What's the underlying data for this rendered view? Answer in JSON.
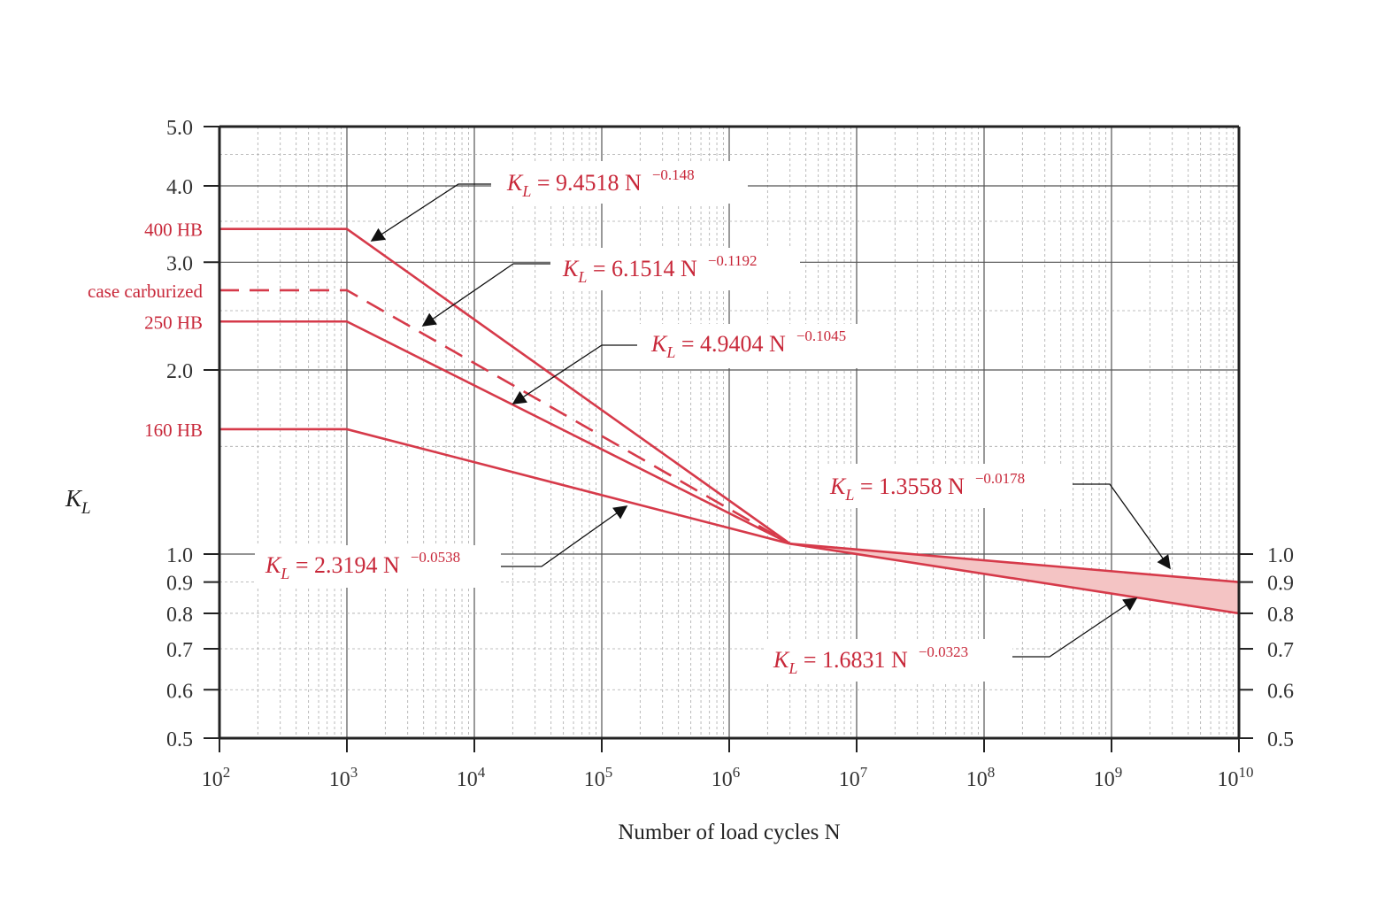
{
  "chart_data": {
    "type": "line",
    "xlabel": "Number of load cycles N",
    "ylabel": "K",
    "ylabel_sub": "L",
    "x_scale": "log",
    "y_scale": "log",
    "xlim": [
      100,
      10000000000
    ],
    "ylim": [
      0.5,
      5.0
    ],
    "grid": true,
    "x_ticks": [
      {
        "value": 100,
        "base": "10",
        "exp": "2"
      },
      {
        "value": 1000,
        "base": "10",
        "exp": "3"
      },
      {
        "value": 10000,
        "base": "10",
        "exp": "4"
      },
      {
        "value": 100000,
        "base": "10",
        "exp": "5"
      },
      {
        "value": 1000000,
        "base": "10",
        "exp": "6"
      },
      {
        "value": 10000000,
        "base": "10",
        "exp": "7"
      },
      {
        "value": 100000000,
        "base": "10",
        "exp": "8"
      },
      {
        "value": 1000000000,
        "base": "10",
        "exp": "9"
      },
      {
        "value": 10000000000,
        "base": "10",
        "exp": "10"
      }
    ],
    "y_ticks_left": [
      {
        "value": 5.0,
        "label": "5.0"
      },
      {
        "value": 4.0,
        "label": "4.0"
      },
      {
        "value": 3.0,
        "label": "3.0"
      },
      {
        "value": 2.0,
        "label": "2.0"
      },
      {
        "value": 1.0,
        "label": "1.0"
      },
      {
        "value": 0.9,
        "label": "0.9"
      },
      {
        "value": 0.8,
        "label": "0.8"
      },
      {
        "value": 0.7,
        "label": "0.7"
      },
      {
        "value": 0.6,
        "label": "0.6"
      },
      {
        "value": 0.5,
        "label": "0.5"
      }
    ],
    "y_ticks_right": [
      {
        "value": 1.0,
        "label": "1.0"
      },
      {
        "value": 0.9,
        "label": "0.9"
      },
      {
        "value": 0.8,
        "label": "0.8"
      },
      {
        "value": 0.7,
        "label": "0.7"
      },
      {
        "value": 0.6,
        "label": "0.6"
      },
      {
        "value": 0.5,
        "label": "0.5"
      }
    ],
    "series": [
      {
        "name": "400 HB",
        "style": "solid",
        "flat_value": 3.4,
        "coef": 9.4518,
        "exp": -0.148
      },
      {
        "name": "case carburized",
        "style": "dashed",
        "flat_value": 2.7,
        "coef": 6.1514,
        "exp": -0.1192
      },
      {
        "name": "250 HB",
        "style": "solid",
        "flat_value": 2.4,
        "coef": 4.9404,
        "exp": -0.1045
      },
      {
        "name": "160 HB",
        "style": "solid",
        "flat_value": 1.6,
        "coef": 2.3194,
        "exp": -0.0538
      }
    ],
    "upper_band": {
      "coef": 1.3558,
      "exp": -0.0178
    },
    "lower_band": {
      "coef": 1.6831,
      "exp": -0.0323
    },
    "knee_n": 1000,
    "converge_n": 3000000,
    "end_n": 10000000000,
    "series_labels": [
      {
        "text": "400 HB",
        "y": 3.4
      },
      {
        "text": "case carburized",
        "y": 2.7
      },
      {
        "text": "250 HB",
        "y": 2.4
      },
      {
        "text": "160 HB",
        "y": 1.6
      }
    ],
    "annotations": [
      {
        "main": "K",
        "sub": "L",
        "body": " = 9.4518 N",
        "exp": "−0.148"
      },
      {
        "main": "K",
        "sub": "L",
        "body": " = 6.1514 N",
        "exp": "−0.1192"
      },
      {
        "main": "K",
        "sub": "L",
        "body": " = 4.9404 N",
        "exp": "−0.1045"
      },
      {
        "main": "K",
        "sub": "L",
        "body": " = 2.3194 N",
        "exp": "−0.0538"
      },
      {
        "main": "K",
        "sub": "L",
        "body": " = 1.3558 N",
        "exp": "−0.0178"
      },
      {
        "main": "K",
        "sub": "L",
        "body": " = 1.6831 N",
        "exp": "−0.0323"
      }
    ],
    "colors": {
      "curve": "#d63a4a",
      "band_fill": "#f4c4c4",
      "label": "#c8283a",
      "axis": "#222222",
      "grid_major": "#555555",
      "grid_minor": "#aaaaaa"
    }
  }
}
